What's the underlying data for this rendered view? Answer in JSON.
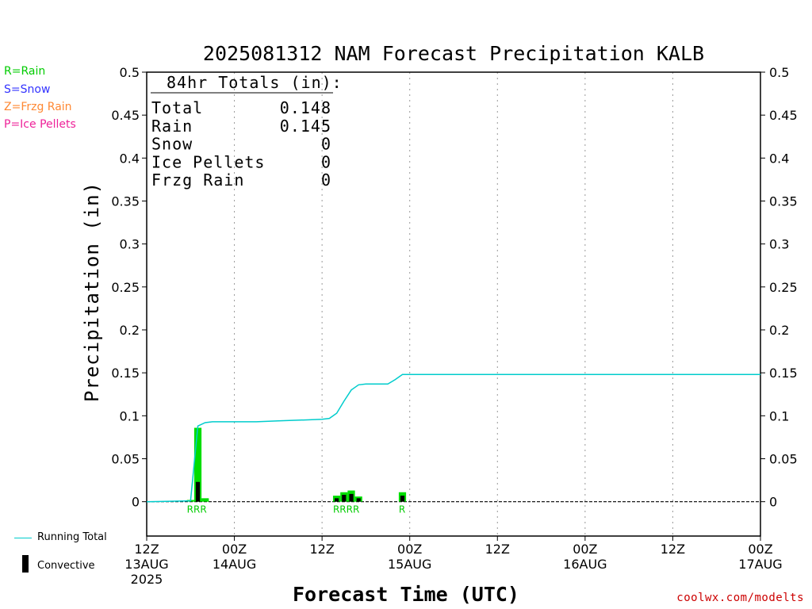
{
  "chart_data": {
    "type": "bar",
    "title": "2025081312 NAM Forecast Precipitation KALB",
    "xlabel": "Forecast Time (UTC)",
    "ylabel": "Precipitation (in)",
    "ylim": [
      -0.04,
      0.5
    ],
    "y_ticks": [
      "0",
      "0.05",
      "0.1",
      "0.15",
      "0.2",
      "0.25",
      "0.3",
      "0.35",
      "0.4",
      "0.45",
      "0.5"
    ],
    "x_range_hours": [
      0,
      84
    ],
    "x_ticks": [
      {
        "hour": 0,
        "line1": "12Z",
        "line2": "13AUG",
        "line3": "2025"
      },
      {
        "hour": 12,
        "line1": "00Z",
        "line2": "14AUG",
        "line3": ""
      },
      {
        "hour": 24,
        "line1": "12Z",
        "line2": "",
        "line3": ""
      },
      {
        "hour": 36,
        "line1": "00Z",
        "line2": "15AUG",
        "line3": ""
      },
      {
        "hour": 48,
        "line1": "12Z",
        "line2": "",
        "line3": ""
      },
      {
        "hour": 60,
        "line1": "00Z",
        "line2": "16AUG",
        "line3": ""
      },
      {
        "hour": 72,
        "line1": "12Z",
        "line2": "",
        "line3": ""
      },
      {
        "hour": 84,
        "line1": "00Z",
        "line2": "17AUG",
        "line3": ""
      }
    ],
    "precip_bars": [
      {
        "hour": 6,
        "value": 0.002
      },
      {
        "hour": 7,
        "value": 0.086
      },
      {
        "hour": 8,
        "value": 0.004
      },
      {
        "hour": 26,
        "value": 0.007
      },
      {
        "hour": 27,
        "value": 0.011
      },
      {
        "hour": 28,
        "value": 0.013
      },
      {
        "hour": 29,
        "value": 0.006
      },
      {
        "hour": 35,
        "value": 0.011
      }
    ],
    "convective_bars": [
      {
        "hour": 7,
        "value": 0.023
      },
      {
        "hour": 26,
        "value": 0.004
      },
      {
        "hour": 27,
        "value": 0.008
      },
      {
        "hour": 28,
        "value": 0.009
      },
      {
        "hour": 29,
        "value": 0.004
      },
      {
        "hour": 35,
        "value": 0.007
      }
    ],
    "type_labels": [
      {
        "start_hour": 6,
        "text": "RRR"
      },
      {
        "start_hour": 26,
        "text": "RRRR"
      },
      {
        "start_hour": 35,
        "text": "R"
      }
    ],
    "running_total": {
      "name": "Running Total",
      "x": [
        0,
        6,
        7,
        8,
        9,
        12,
        15,
        18,
        21,
        24,
        25,
        26,
        27,
        28,
        29,
        30,
        33,
        34,
        35,
        36,
        48,
        60,
        72,
        84
      ],
      "y": [
        0,
        0.001,
        0.088,
        0.092,
        0.093,
        0.093,
        0.093,
        0.094,
        0.095,
        0.096,
        0.097,
        0.103,
        0.117,
        0.13,
        0.136,
        0.137,
        0.137,
        0.142,
        0.148,
        0.148,
        0.148,
        0.148,
        0.148,
        0.148
      ]
    },
    "series_colors": {
      "rain": "#00dd00",
      "convective": "#000000",
      "running_total": "#00cccc"
    },
    "grid": "vertical-dotted"
  },
  "totals_box": {
    "header": "84hr Totals (in):",
    "rows": [
      {
        "label": "Total",
        "value": "0.148"
      },
      {
        "label": "Rain",
        "value": "0.145"
      },
      {
        "label": "Snow",
        "value": "0"
      },
      {
        "label": "Ice Pellets",
        "value": "0"
      },
      {
        "label": "Frzg Rain",
        "value": "0"
      }
    ]
  },
  "type_legend": [
    {
      "text": "R=Rain",
      "color": "#00cc00"
    },
    {
      "text": "S=Snow",
      "color": "#3333ff"
    },
    {
      "text": "Z=Frzg Rain",
      "color": "#ff8833"
    },
    {
      "text": "P=Ice Pellets",
      "color": "#ee2299"
    }
  ],
  "bottom_legend": {
    "running_total_label": "Running Total",
    "convective_label": "Convective"
  },
  "credit": "coolwx.com/modelts"
}
